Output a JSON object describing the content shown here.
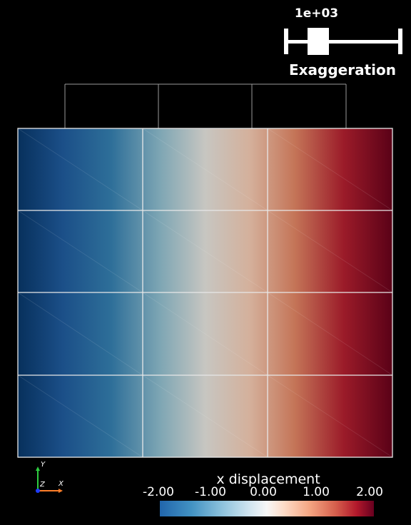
{
  "exaggeration": {
    "value": "1e+03",
    "label": "Exaggeration",
    "fraction": 0.24
  },
  "scalar_bar": {
    "title": "x displacement",
    "ticks": [
      "-2.00",
      "-1.00",
      "0.00",
      "1.00",
      "2.00"
    ],
    "colormap": [
      "#053061",
      "#2166ac",
      "#4393c3",
      "#92c5de",
      "#d1e5f0",
      "#f7f7f7",
      "#fddbc7",
      "#f4a582",
      "#d6604d",
      "#b2182b",
      "#67001f"
    ]
  },
  "axes": {
    "x": "X",
    "y": "Y",
    "z": "Z",
    "x_color": "#ff7f2a",
    "y_color": "#2ecc40",
    "z_color": "#1e3cff"
  },
  "mesh": {
    "columns": 3,
    "rows": 4,
    "field_colors": [
      "#08305e",
      "#1f5790",
      "#2f7aa3",
      "#8fb1bd",
      "#c8c7c2",
      "#d7b39d",
      "#c3775a",
      "#a93a36",
      "#8b1525",
      "#5c0218"
    ]
  }
}
